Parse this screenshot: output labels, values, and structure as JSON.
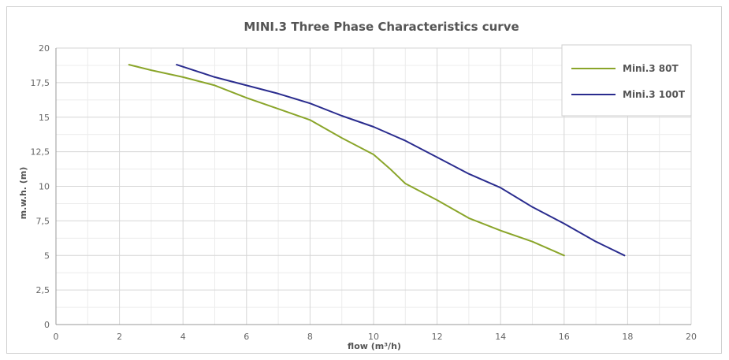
{
  "chart_data": {
    "type": "line",
    "title": "MINI.3 Three Phase Characteristics curve",
    "xlabel": "flow (m³/h)",
    "ylabel": "m.w.h. (m)",
    "xlim": [
      0,
      20
    ],
    "ylim": [
      0,
      20
    ],
    "x_ticks": [
      0,
      2,
      4,
      6,
      8,
      10,
      12,
      14,
      16,
      18,
      20
    ],
    "x_tick_labels": [
      "0",
      "2",
      "4",
      "6",
      "8",
      "10",
      "12",
      "14",
      "16",
      "18",
      "20"
    ],
    "y_ticks": [
      0,
      2.5,
      5,
      7.5,
      10,
      12.5,
      15,
      17.5,
      20
    ],
    "y_tick_labels": [
      "0",
      "2,5",
      "5",
      "7,5",
      "10",
      "12,5",
      "15",
      "17,5",
      "20"
    ],
    "grid": true,
    "legend_position": "top-right",
    "series": [
      {
        "name": "Mini.3 80T",
        "color": "#8aa52a",
        "x": [
          2.3,
          3,
          4,
          5,
          6,
          7,
          8,
          9,
          10,
          10.5,
          11,
          12,
          13,
          14,
          15,
          16
        ],
        "y": [
          18.8,
          18.4,
          17.9,
          17.3,
          16.4,
          15.6,
          14.8,
          13.5,
          12.3,
          11.3,
          10.2,
          9.0,
          7.7,
          6.8,
          6.0,
          5.0
        ]
      },
      {
        "name": "Mini.3 100T",
        "color": "#2a2c8e",
        "x": [
          3.8,
          5,
          6,
          7,
          8,
          9,
          10,
          11,
          12,
          13,
          14,
          15,
          16,
          17,
          17.9
        ],
        "y": [
          18.8,
          17.9,
          17.3,
          16.7,
          16.0,
          15.1,
          14.3,
          13.3,
          12.1,
          10.9,
          9.9,
          8.5,
          7.3,
          6.0,
          5.0
        ]
      }
    ]
  }
}
